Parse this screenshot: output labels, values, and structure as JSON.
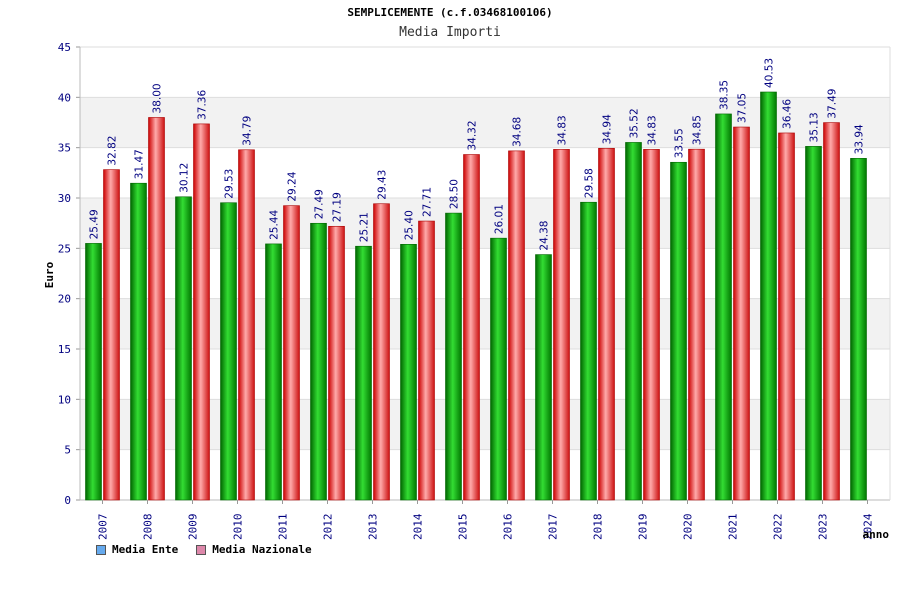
{
  "title": "SEMPLICEMENTE (c.f.03468100106)",
  "subtitle": "Media Importi",
  "chart_data": {
    "type": "bar",
    "title": "SEMPLICEMENTE (c.f.03468100106)",
    "subtitle": "Media Importi",
    "xlabel": "anno",
    "ylabel": "Euro",
    "ylim": [
      0,
      45
    ],
    "yticks": [
      0,
      5,
      10,
      15,
      20,
      25,
      30,
      35,
      40,
      45
    ],
    "grid": true,
    "legend_position": "bottom-left",
    "categories": [
      "2007",
      "2008",
      "2009",
      "2010",
      "2011",
      "2012",
      "2013",
      "2014",
      "2015",
      "2016",
      "2017",
      "2018",
      "2019",
      "2020",
      "2021",
      "2022",
      "2023",
      "2024"
    ],
    "series": [
      {
        "name": "Media Ente",
        "color": "#00aa00",
        "legend_color": "#66aaee",
        "values": [
          25.49,
          31.47,
          30.12,
          29.53,
          25.44,
          27.49,
          25.21,
          25.4,
          28.5,
          26.01,
          24.38,
          29.58,
          35.52,
          33.55,
          38.35,
          40.53,
          35.13,
          33.94
        ]
      },
      {
        "name": "Media Nazionale",
        "color": "#ee2222",
        "legend_color": "#dd88aa",
        "values": [
          32.82,
          38.0,
          37.36,
          34.79,
          29.24,
          27.19,
          29.43,
          27.71,
          34.32,
          34.68,
          34.83,
          34.94,
          34.83,
          34.85,
          37.05,
          36.46,
          37.49,
          null
        ]
      }
    ],
    "labels": {
      "s0": [
        "25.49",
        "31.47",
        "30.12",
        "29.53",
        "25.44",
        "27.49",
        "25.21",
        "25.40",
        "28.50",
        "26.01",
        "24.38",
        "29.58",
        "35.52",
        "33.55",
        "38.35",
        "40.53",
        "35.13",
        "33.94"
      ],
      "s1": [
        "32.82",
        "38.00",
        "37.36",
        "34.79",
        "29.24",
        "27.19",
        "29.43",
        "27.71",
        "34.32",
        "34.68",
        "34.83",
        "34.94",
        "34.83",
        "34.85",
        "37.05",
        "36.46",
        "37.49",
        ""
      ]
    }
  }
}
